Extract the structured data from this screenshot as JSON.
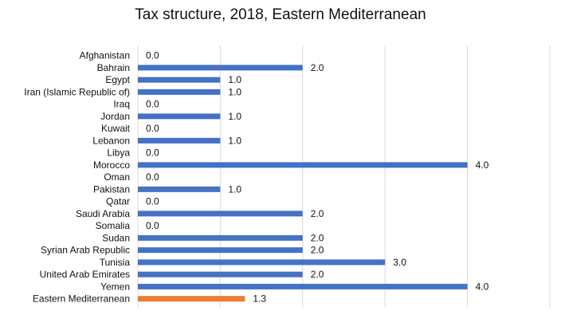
{
  "chart_data": {
    "type": "bar",
    "orientation": "horizontal",
    "title": "Tax structure, 2018, Eastern Mediterranean",
    "xlabel": "",
    "ylabel": "",
    "xlim": [
      0,
      5
    ],
    "x_ticks": [
      "0",
      "1",
      "2",
      "3",
      "4",
      "5"
    ],
    "grid": "vertical gridlines",
    "legend": "none",
    "colors": {
      "bar": "#4472C4",
      "aggregate_bar": "#ED7D31",
      "grid": "#D9D9D9",
      "text": "#111111"
    },
    "categories": [
      "Afghanistan",
      "Bahrain",
      "Egypt",
      "Iran (Islamic Republic of)",
      "Iraq",
      "Jordan",
      "Kuwait",
      "Lebanon",
      "Libya",
      "Morocco",
      "Oman",
      "Pakistan",
      "Qatar",
      "Saudi Arabia",
      "Somalia",
      "Sudan",
      "Syrian Arab Republic",
      "Tunisia",
      "United Arab Emirates",
      "Yemen",
      "Eastern Mediterranean"
    ],
    "values": [
      0,
      2,
      1,
      1,
      0,
      1,
      0,
      1,
      0,
      4,
      0,
      1,
      0,
      2,
      0,
      2,
      2,
      3,
      2,
      4,
      1.3
    ],
    "data_labels": [
      "0.0",
      "2.0",
      "1.0",
      "1.0",
      "0.0",
      "1.0",
      "0.0",
      "1.0",
      "0.0",
      "4.0",
      "0.0",
      "1.0",
      "0.0",
      "2.0",
      "0.0",
      "2.0",
      "2.0",
      "3.0",
      "2.0",
      "4.0",
      "1.3"
    ],
    "highlighted_category": "Eastern Mediterranean"
  }
}
